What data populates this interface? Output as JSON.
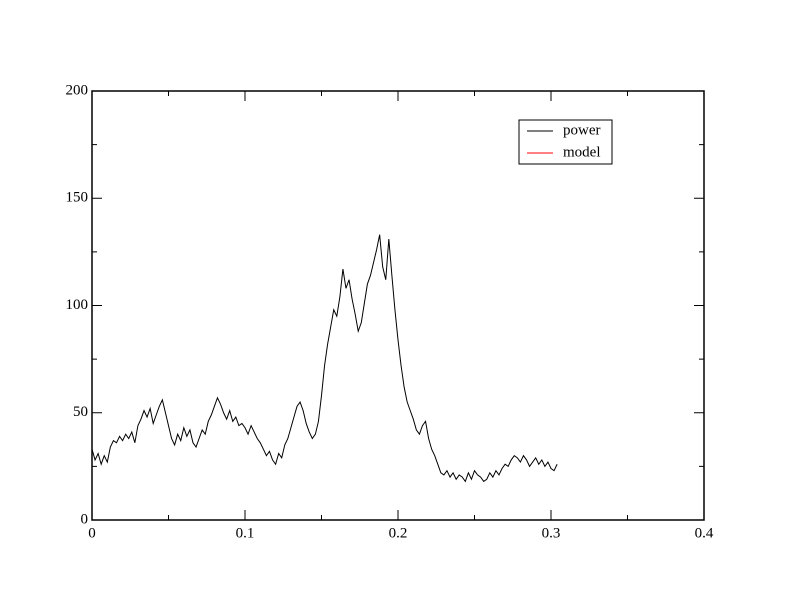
{
  "chart_data": {
    "type": "line",
    "x": [
      0,
      0.002,
      0.004,
      0.006,
      0.008,
      0.01,
      0.012,
      0.014,
      0.016,
      0.018,
      0.02,
      0.022,
      0.024,
      0.026,
      0.028,
      0.03,
      0.032,
      0.034,
      0.036,
      0.038,
      0.04,
      0.042,
      0.044,
      0.046,
      0.048,
      0.05,
      0.052,
      0.054,
      0.056,
      0.058,
      0.06,
      0.062,
      0.064,
      0.066,
      0.068,
      0.07,
      0.072,
      0.074,
      0.076,
      0.078,
      0.08,
      0.082,
      0.084,
      0.086,
      0.088,
      0.09,
      0.092,
      0.094,
      0.096,
      0.098,
      0.1,
      0.102,
      0.104,
      0.106,
      0.108,
      0.11,
      0.112,
      0.114,
      0.116,
      0.118,
      0.12,
      0.122,
      0.124,
      0.126,
      0.128,
      0.13,
      0.132,
      0.134,
      0.136,
      0.138,
      0.14,
      0.142,
      0.144,
      0.146,
      0.148,
      0.15,
      0.152,
      0.154,
      0.156,
      0.158,
      0.16,
      0.162,
      0.164,
      0.166,
      0.168,
      0.17,
      0.172,
      0.174,
      0.176,
      0.178,
      0.18,
      0.182,
      0.184,
      0.186,
      0.188,
      0.19,
      0.192,
      0.194,
      0.196,
      0.198,
      0.2,
      0.202,
      0.204,
      0.206,
      0.208,
      0.21,
      0.212,
      0.214,
      0.216,
      0.218,
      0.22,
      0.222,
      0.224,
      0.226,
      0.228,
      0.23,
      0.232,
      0.234,
      0.236,
      0.238,
      0.24,
      0.242,
      0.244,
      0.246,
      0.248,
      0.25,
      0.252,
      0.254,
      0.256,
      0.258,
      0.26,
      0.262,
      0.264,
      0.266,
      0.268,
      0.27,
      0.272,
      0.274,
      0.276,
      0.278,
      0.28,
      0.282,
      0.284,
      0.286,
      0.288,
      0.29,
      0.292,
      0.294,
      0.296,
      0.298,
      0.3,
      0.302,
      0.304
    ],
    "series": [
      {
        "name": "power",
        "color": "#000000",
        "values": [
          33,
          28,
          31,
          26,
          30,
          27,
          34,
          37,
          36,
          39,
          37,
          40,
          38,
          41,
          36,
          44,
          47,
          51,
          48,
          52,
          45,
          49,
          53,
          56,
          50,
          44,
          38,
          35,
          40,
          37,
          43,
          39,
          42,
          36,
          34,
          38,
          42,
          40,
          46,
          49,
          53,
          57,
          54,
          50,
          47,
          51,
          46,
          48,
          44,
          45,
          43,
          40,
          44,
          41,
          38,
          36,
          33,
          30,
          32,
          28,
          26,
          31,
          29,
          35,
          38,
          43,
          48,
          53,
          55,
          51,
          45,
          41,
          38,
          40,
          46,
          58,
          72,
          82,
          90,
          98,
          95,
          104,
          117,
          108,
          112,
          103,
          96,
          88,
          92,
          101,
          110,
          114,
          120,
          126,
          133,
          118,
          112,
          131,
          114,
          98,
          84,
          72,
          62,
          55,
          51,
          47,
          42,
          40,
          44,
          46,
          38,
          33,
          30,
          26,
          22,
          21,
          23,
          20,
          22,
          19,
          21,
          20,
          18,
          22,
          19,
          23,
          21,
          20,
          18,
          19,
          22,
          20,
          23,
          21,
          24,
          26,
          25,
          28,
          30,
          29,
          27,
          30,
          28,
          25,
          27,
          29,
          26,
          28,
          25,
          27,
          24,
          23,
          26
        ]
      },
      {
        "name": "model",
        "color": "#ff0000",
        "values": [
          null,
          null,
          null,
          null,
          null,
          null,
          null,
          null,
          null,
          null,
          null,
          null,
          null,
          null,
          null,
          null,
          null,
          null,
          null,
          null,
          null,
          null,
          null,
          null,
          null,
          null,
          null,
          null,
          null,
          null,
          null,
          null,
          null,
          null,
          null,
          null,
          null,
          null,
          null,
          null,
          null,
          null,
          null,
          null,
          null,
          null,
          null,
          null,
          null,
          null,
          null,
          null,
          null,
          null,
          null,
          null,
          null,
          null,
          null,
          null,
          null,
          null,
          null,
          null,
          null,
          null,
          null,
          null,
          null,
          null,
          null,
          null,
          null,
          null,
          null,
          null,
          null,
          null,
          null,
          null,
          null,
          null,
          null,
          null,
          null,
          null,
          null,
          null,
          null,
          null,
          null,
          null,
          null,
          null,
          null,
          null,
          null,
          null,
          null,
          null,
          null,
          null,
          null,
          null,
          null,
          null,
          null,
          null,
          null,
          null,
          null,
          null,
          null,
          null,
          null,
          null,
          null,
          null,
          null,
          null,
          null,
          null,
          null,
          null,
          null,
          null,
          null,
          null,
          null,
          null,
          null,
          null,
          null,
          null,
          null,
          null,
          null,
          null,
          null,
          null,
          null,
          null,
          null,
          null,
          null,
          null,
          null,
          null,
          null,
          null,
          null,
          null,
          null
        ]
      }
    ],
    "xlim": [
      0,
      0.4
    ],
    "xticks": [
      0,
      0.1,
      0.2,
      0.3,
      0.4
    ],
    "xminorticks": [
      0.05,
      0.15,
      0.25,
      0.35
    ],
    "ylim": [
      0,
      200
    ],
    "yticks": [
      0,
      50,
      100,
      150,
      200
    ],
    "yminorticks": [
      25,
      75,
      125,
      175
    ],
    "legend": "upper right"
  }
}
